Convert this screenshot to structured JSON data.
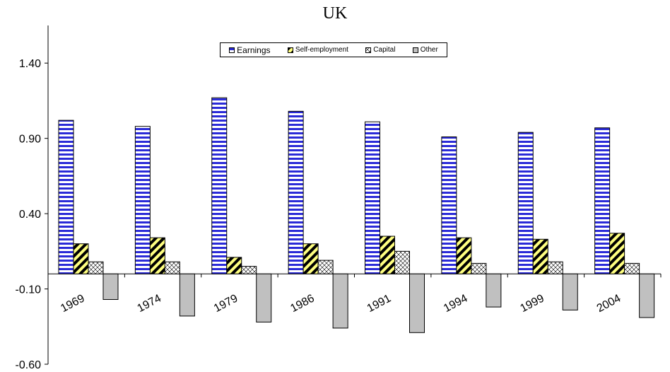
{
  "chart_data": {
    "type": "bar",
    "title": "UK",
    "xlabel": "",
    "ylabel": "",
    "ylim": [
      -0.6,
      1.65
    ],
    "yticks": [
      "1.40",
      "0.90",
      "0.40",
      "-0.10",
      "-0.60"
    ],
    "ytick_values": [
      1.4,
      0.9,
      0.4,
      -0.1,
      -0.6
    ],
    "categories": [
      "1969",
      "1974",
      "1979",
      "1986",
      "1991",
      "1994",
      "1999",
      "2004"
    ],
    "series": [
      {
        "name": "Earnings",
        "values": [
          1.02,
          0.98,
          1.17,
          1.08,
          1.01,
          0.91,
          0.94,
          0.97
        ],
        "color": "#2b2bd8",
        "pattern": "horizontal-stripes"
      },
      {
        "name": "Self-employment",
        "values": [
          0.2,
          0.24,
          0.11,
          0.2,
          0.25,
          0.24,
          0.23,
          0.27
        ],
        "color": "#ffff80",
        "pattern": "diagonal-stripes"
      },
      {
        "name": "Capital",
        "values": [
          0.08,
          0.08,
          0.05,
          0.09,
          0.15,
          0.07,
          0.08,
          0.07
        ],
        "color": "#ffffff",
        "pattern": "crosshatch"
      },
      {
        "name": "Other",
        "values": [
          -0.17,
          -0.28,
          -0.32,
          -0.36,
          -0.39,
          -0.22,
          -0.24,
          -0.29
        ],
        "color": "#c0c0c0",
        "pattern": "solid"
      }
    ],
    "legend_position": "top-center",
    "grid": false
  }
}
